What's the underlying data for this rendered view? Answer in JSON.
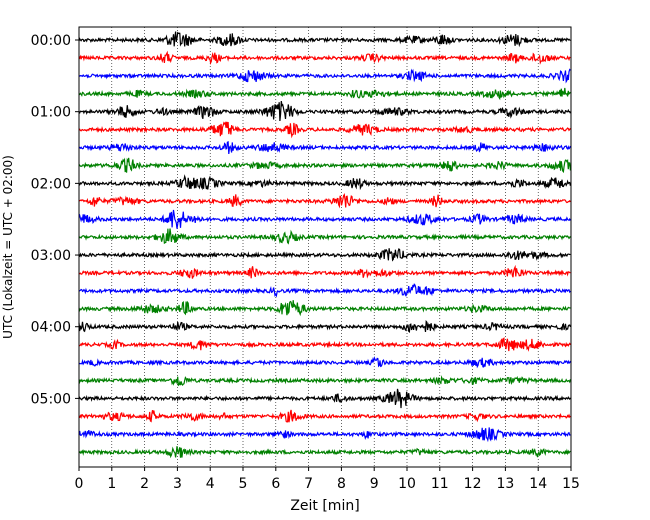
{
  "chart_data": {
    "type": "line",
    "title": "",
    "xlabel": "Zeit  [min]",
    "ylabel": "UTC (Lokalzeit = UTC + 02:00)",
    "xlim": [
      0,
      15
    ],
    "x_ticks": [
      0,
      1,
      2,
      3,
      4,
      5,
      6,
      7,
      8,
      9,
      10,
      11,
      12,
      13,
      14,
      15
    ],
    "y_tick_labels": [
      "00:00",
      "01:00",
      "02:00",
      "03:00",
      "04:00",
      "05:00"
    ],
    "trace_interval_minutes": 15,
    "trace_count": 24,
    "trace_colors": [
      "#000000",
      "#ff0000",
      "#0000ff",
      "#008000"
    ],
    "grid": "vertical dotted lines at each minute",
    "legend": "none"
  }
}
